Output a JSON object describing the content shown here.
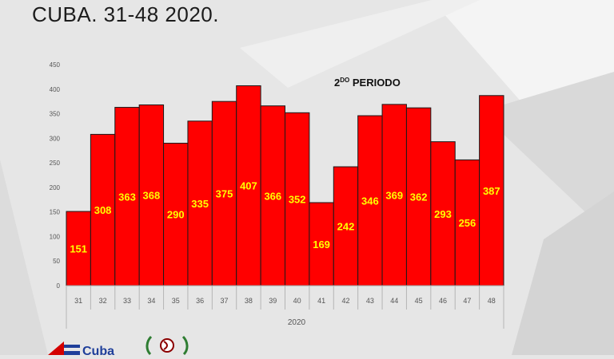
{
  "page": {
    "title": "CUBA. 31-48 2020."
  },
  "logo": {
    "text": "Cuba"
  },
  "colors": {
    "bar_fill": "#ff0000",
    "bar_stroke": "#1a1a1a",
    "data_label": "#ffff00",
    "axis_text": "#555555",
    "grid": "#bfbfbf"
  },
  "chart_data": {
    "type": "bar",
    "categories": [
      "31",
      "32",
      "33",
      "34",
      "35",
      "36",
      "37",
      "38",
      "39",
      "40",
      "41",
      "42",
      "43",
      "44",
      "45",
      "46",
      "47",
      "48"
    ],
    "values": [
      151,
      308,
      363,
      368,
      290,
      335,
      375,
      407,
      366,
      352,
      169,
      242,
      346,
      369,
      362,
      293,
      256,
      387
    ],
    "group_label": "2020",
    "annotation": {
      "main": "2",
      "superscript": "DO",
      "rest": " PERIODO"
    },
    "ylim": [
      0,
      450
    ],
    "yticks": [
      0,
      50,
      100,
      150,
      200,
      250,
      300,
      350,
      400,
      450
    ],
    "grid": false,
    "data_labels": true
  }
}
